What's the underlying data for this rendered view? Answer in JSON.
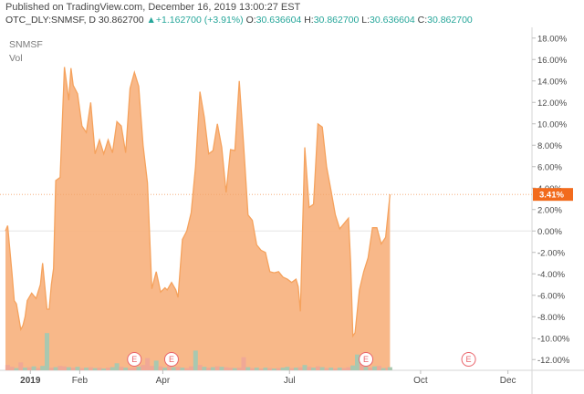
{
  "header": {
    "published": "Published on TradingView.com, December 16, 2019 13:00:27 EST",
    "symbol": "OTC_DLY:SNMSF, D",
    "price": "30.862700",
    "change": "+1.162700 (+3.91%)",
    "o_label": "O:",
    "o": "30.636604",
    "h_label": "H:",
    "h": "30.862700",
    "l_label": "L:",
    "l": "30.636604",
    "c_label": "C:",
    "c": "30.862700",
    "up_arrow": "▲"
  },
  "legend": {
    "symbol": "SNMSF",
    "volume": "Vol"
  },
  "colors": {
    "area_line": "#f5a25d",
    "area_fill": "#f7b07c",
    "badge": "#f26b1d",
    "vol_red": "#f0a896",
    "vol_green": "#a9c8b0",
    "event": "#e9636a"
  },
  "icons": {
    "event_marker": "earnings-e-icon"
  },
  "chart_data": {
    "type": "area",
    "ylabel": "",
    "xlabel": "",
    "ylim": [
      -13,
      19
    ],
    "yticks": [
      "18.00%",
      "16.00%",
      "14.00%",
      "12.00%",
      "10.00%",
      "8.00%",
      "6.00%",
      "4.00%",
      "2.00%",
      "0.00%",
      "-2.00%",
      "-4.00%",
      "-6.00%",
      "-8.00%",
      "-10.00%",
      "-12.00%"
    ],
    "xticks": [
      {
        "label": "2019",
        "x": 0.07,
        "bold": true
      },
      {
        "label": "Feb",
        "x": 1.2
      },
      {
        "label": "Apr",
        "x": 3.1
      },
      {
        "label": "Jul",
        "x": 6.0
      },
      {
        "label": "Oct",
        "x": 9.0
      },
      {
        "label": "Dec",
        "x": 11.0
      }
    ],
    "xlim": [
      -0.5,
      11.55
    ],
    "last_value_label": "3.41%",
    "last_value": 3.41,
    "events": [
      {
        "label": "E",
        "x": 2.45
      },
      {
        "label": "E",
        "x": 3.3
      },
      {
        "label": "E",
        "x": 7.75
      },
      {
        "label": "E",
        "x": 10.1
      }
    ],
    "series": [
      {
        "values": [
          [
            -0.5,
            0.0
          ],
          [
            -0.45,
            0.5
          ],
          [
            -0.35,
            -4.0
          ],
          [
            -0.3,
            -6.5
          ],
          [
            -0.25,
            -6.8
          ],
          [
            -0.15,
            -9.2
          ],
          [
            -0.1,
            -8.8
          ],
          [
            -0.05,
            -8.0
          ],
          [
            0.0,
            -6.5
          ],
          [
            0.1,
            -5.8
          ],
          [
            0.2,
            -6.3
          ],
          [
            0.3,
            -5.0
          ],
          [
            0.35,
            -3.0
          ],
          [
            0.45,
            -7.3
          ],
          [
            0.5,
            -7.3
          ],
          [
            0.55,
            -5.0
          ],
          [
            0.6,
            -3.5
          ],
          [
            0.65,
            4.7
          ],
          [
            0.75,
            5.0
          ],
          [
            0.85,
            15.3
          ],
          [
            0.95,
            12.2
          ],
          [
            1.0,
            15.2
          ],
          [
            1.05,
            13.6
          ],
          [
            1.15,
            12.8
          ],
          [
            1.25,
            9.8
          ],
          [
            1.35,
            9.2
          ],
          [
            1.45,
            12.0
          ],
          [
            1.55,
            7.2
          ],
          [
            1.65,
            8.5
          ],
          [
            1.75,
            7.2
          ],
          [
            1.85,
            8.5
          ],
          [
            1.95,
            7.3
          ],
          [
            2.05,
            10.2
          ],
          [
            2.15,
            9.8
          ],
          [
            2.25,
            7.3
          ],
          [
            2.35,
            13.3
          ],
          [
            2.45,
            14.8
          ],
          [
            2.55,
            13.5
          ],
          [
            2.65,
            8.0
          ],
          [
            2.75,
            4.5
          ],
          [
            2.85,
            -5.4
          ],
          [
            2.95,
            -3.8
          ],
          [
            3.05,
            -5.7
          ],
          [
            3.15,
            -5.3
          ],
          [
            3.2,
            -5.5
          ],
          [
            3.3,
            -4.8
          ],
          [
            3.4,
            -5.5
          ],
          [
            3.45,
            -6.2
          ],
          [
            3.55,
            -0.8
          ],
          [
            3.65,
            0.0
          ],
          [
            3.75,
            1.7
          ],
          [
            3.85,
            6.0
          ],
          [
            3.95,
            13.0
          ],
          [
            4.05,
            10.6
          ],
          [
            4.15,
            7.2
          ],
          [
            4.25,
            7.5
          ],
          [
            4.35,
            10.0
          ],
          [
            4.45,
            7.8
          ],
          [
            4.55,
            3.6
          ],
          [
            4.65,
            7.6
          ],
          [
            4.75,
            7.5
          ],
          [
            4.85,
            14.0
          ],
          [
            4.95,
            8.0
          ],
          [
            5.05,
            1.5
          ],
          [
            5.15,
            1.0
          ],
          [
            5.25,
            -1.3
          ],
          [
            5.35,
            -1.8
          ],
          [
            5.45,
            -2.0
          ],
          [
            5.55,
            -3.8
          ],
          [
            5.65,
            -3.9
          ],
          [
            5.75,
            -3.8
          ],
          [
            5.85,
            -4.3
          ],
          [
            5.95,
            -4.5
          ],
          [
            6.05,
            -4.8
          ],
          [
            6.15,
            -4.5
          ],
          [
            6.2,
            -5.2
          ],
          [
            6.25,
            -7.5
          ],
          [
            6.35,
            7.8
          ],
          [
            6.45,
            2.2
          ],
          [
            6.55,
            2.5
          ],
          [
            6.65,
            10.0
          ],
          [
            6.75,
            9.7
          ],
          [
            6.85,
            6.0
          ],
          [
            6.95,
            3.8
          ],
          [
            7.05,
            1.5
          ],
          [
            7.15,
            0.2
          ],
          [
            7.25,
            0.7
          ],
          [
            7.35,
            1.2
          ],
          [
            7.4,
            -3.0
          ],
          [
            7.45,
            -9.8
          ],
          [
            7.5,
            -9.5
          ],
          [
            7.6,
            -5.5
          ],
          [
            7.7,
            -3.8
          ],
          [
            7.8,
            -2.5
          ],
          [
            7.9,
            0.3
          ],
          [
            8.0,
            0.3
          ],
          [
            8.1,
            -1.2
          ],
          [
            8.2,
            -0.6
          ],
          [
            8.3,
            3.41
          ]
        ]
      }
    ],
    "volume": {
      "ylim": [
        0,
        10
      ],
      "bars": [
        {
          "x": -0.45,
          "v": 1.2,
          "c": "red"
        },
        {
          "x": -0.35,
          "v": 0.8,
          "c": "red"
        },
        {
          "x": -0.25,
          "v": 0.5,
          "c": "green"
        },
        {
          "x": -0.15,
          "v": 1.8,
          "c": "red"
        },
        {
          "x": -0.05,
          "v": 0.6,
          "c": "green"
        },
        {
          "x": 0.05,
          "v": 0.7,
          "c": "red"
        },
        {
          "x": 0.15,
          "v": 0.9,
          "c": "green"
        },
        {
          "x": 0.25,
          "v": 0.5,
          "c": "red"
        },
        {
          "x": 0.35,
          "v": 1.0,
          "c": "green"
        },
        {
          "x": 0.45,
          "v": 8.5,
          "c": "green"
        },
        {
          "x": 0.55,
          "v": 0.6,
          "c": "red"
        },
        {
          "x": 0.65,
          "v": 0.7,
          "c": "green"
        },
        {
          "x": 0.75,
          "v": 1.0,
          "c": "red"
        },
        {
          "x": 0.85,
          "v": 0.9,
          "c": "red"
        },
        {
          "x": 0.95,
          "v": 0.7,
          "c": "green"
        },
        {
          "x": 1.05,
          "v": 0.6,
          "c": "red"
        },
        {
          "x": 1.15,
          "v": 0.8,
          "c": "green"
        },
        {
          "x": 1.25,
          "v": 0.5,
          "c": "red"
        },
        {
          "x": 1.35,
          "v": 0.6,
          "c": "green"
        },
        {
          "x": 1.45,
          "v": 0.7,
          "c": "red"
        },
        {
          "x": 1.55,
          "v": 0.5,
          "c": "green"
        },
        {
          "x": 1.65,
          "v": 0.6,
          "c": "red"
        },
        {
          "x": 1.75,
          "v": 0.4,
          "c": "green"
        },
        {
          "x": 1.85,
          "v": 0.6,
          "c": "red"
        },
        {
          "x": 1.95,
          "v": 0.7,
          "c": "green"
        },
        {
          "x": 2.05,
          "v": 1.6,
          "c": "green"
        },
        {
          "x": 2.15,
          "v": 0.8,
          "c": "red"
        },
        {
          "x": 2.25,
          "v": 0.6,
          "c": "green"
        },
        {
          "x": 2.35,
          "v": 0.5,
          "c": "red"
        },
        {
          "x": 2.45,
          "v": 0.6,
          "c": "red"
        },
        {
          "x": 2.55,
          "v": 0.8,
          "c": "green"
        },
        {
          "x": 2.65,
          "v": 1.2,
          "c": "red"
        },
        {
          "x": 2.75,
          "v": 2.8,
          "c": "red"
        },
        {
          "x": 2.85,
          "v": 1.0,
          "c": "red"
        },
        {
          "x": 2.95,
          "v": 2.2,
          "c": "green"
        },
        {
          "x": 3.05,
          "v": 0.9,
          "c": "red"
        },
        {
          "x": 3.15,
          "v": 0.6,
          "c": "green"
        },
        {
          "x": 3.25,
          "v": 1.5,
          "c": "red"
        },
        {
          "x": 3.35,
          "v": 0.7,
          "c": "green"
        },
        {
          "x": 3.45,
          "v": 0.8,
          "c": "red"
        },
        {
          "x": 3.55,
          "v": 0.6,
          "c": "green"
        },
        {
          "x": 3.65,
          "v": 0.5,
          "c": "red"
        },
        {
          "x": 3.75,
          "v": 0.9,
          "c": "red"
        },
        {
          "x": 3.85,
          "v": 4.5,
          "c": "green"
        },
        {
          "x": 3.95,
          "v": 1.2,
          "c": "red"
        },
        {
          "x": 4.05,
          "v": 0.8,
          "c": "green"
        },
        {
          "x": 4.15,
          "v": 0.6,
          "c": "red"
        },
        {
          "x": 4.25,
          "v": 0.7,
          "c": "green"
        },
        {
          "x": 4.35,
          "v": 0.9,
          "c": "red"
        },
        {
          "x": 4.45,
          "v": 0.8,
          "c": "green"
        },
        {
          "x": 4.55,
          "v": 0.7,
          "c": "red"
        },
        {
          "x": 4.65,
          "v": 0.6,
          "c": "red"
        },
        {
          "x": 4.75,
          "v": 0.5,
          "c": "green"
        },
        {
          "x": 4.85,
          "v": 0.6,
          "c": "red"
        },
        {
          "x": 4.95,
          "v": 3.0,
          "c": "red"
        },
        {
          "x": 5.05,
          "v": 0.7,
          "c": "green"
        },
        {
          "x": 5.15,
          "v": 0.5,
          "c": "red"
        },
        {
          "x": 5.25,
          "v": 0.6,
          "c": "green"
        },
        {
          "x": 5.35,
          "v": 0.4,
          "c": "red"
        },
        {
          "x": 5.45,
          "v": 0.6,
          "c": "green"
        },
        {
          "x": 5.55,
          "v": 0.5,
          "c": "red"
        },
        {
          "x": 5.65,
          "v": 0.4,
          "c": "green"
        },
        {
          "x": 5.75,
          "v": 0.5,
          "c": "red"
        },
        {
          "x": 5.85,
          "v": 0.6,
          "c": "green"
        },
        {
          "x": 5.95,
          "v": 0.8,
          "c": "green"
        },
        {
          "x": 6.05,
          "v": 0.5,
          "c": "red"
        },
        {
          "x": 6.15,
          "v": 0.6,
          "c": "green"
        },
        {
          "x": 6.25,
          "v": 0.7,
          "c": "red"
        },
        {
          "x": 6.35,
          "v": 1.2,
          "c": "green"
        },
        {
          "x": 6.45,
          "v": 0.8,
          "c": "red"
        },
        {
          "x": 6.55,
          "v": 0.6,
          "c": "green"
        },
        {
          "x": 6.65,
          "v": 0.9,
          "c": "red"
        },
        {
          "x": 6.75,
          "v": 0.7,
          "c": "green"
        },
        {
          "x": 6.85,
          "v": 0.5,
          "c": "red"
        },
        {
          "x": 6.95,
          "v": 0.6,
          "c": "green"
        },
        {
          "x": 7.05,
          "v": 0.4,
          "c": "red"
        },
        {
          "x": 7.15,
          "v": 0.6,
          "c": "green"
        },
        {
          "x": 7.25,
          "v": 0.5,
          "c": "red"
        },
        {
          "x": 7.35,
          "v": 0.7,
          "c": "red"
        },
        {
          "x": 7.45,
          "v": 1.1,
          "c": "green"
        },
        {
          "x": 7.55,
          "v": 3.6,
          "c": "green"
        },
        {
          "x": 7.65,
          "v": 1.8,
          "c": "red"
        },
        {
          "x": 7.75,
          "v": 0.8,
          "c": "green"
        },
        {
          "x": 7.85,
          "v": 0.6,
          "c": "red"
        },
        {
          "x": 7.95,
          "v": 0.9,
          "c": "green"
        },
        {
          "x": 8.05,
          "v": 1.0,
          "c": "red"
        },
        {
          "x": 8.15,
          "v": 0.5,
          "c": "green"
        },
        {
          "x": 8.25,
          "v": 0.6,
          "c": "red"
        },
        {
          "x": 8.3,
          "v": 0.7,
          "c": "green"
        }
      ]
    }
  }
}
